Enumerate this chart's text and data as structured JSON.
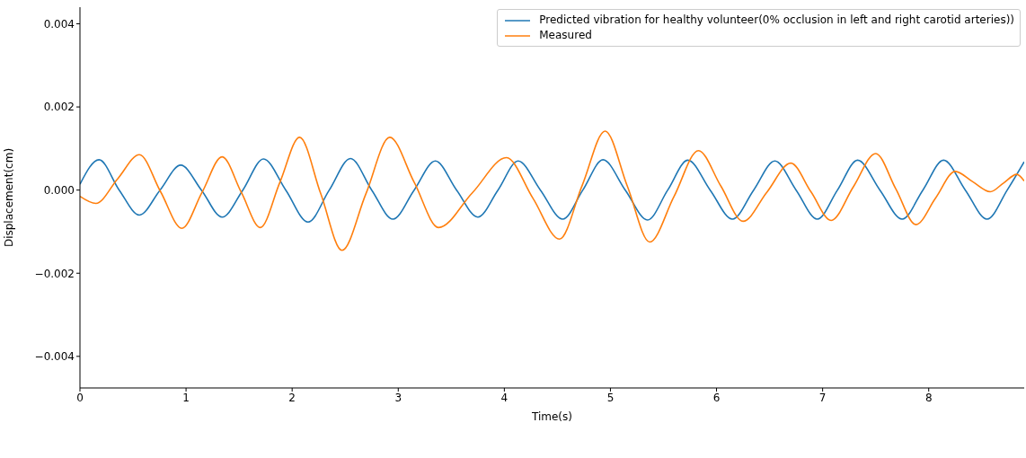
{
  "chart_data": {
    "type": "line",
    "xlabel": "Time(s)",
    "ylabel": "Displacement(cm)",
    "xlim": [
      0,
      8.9
    ],
    "xticks": [
      0,
      1,
      2,
      3,
      4,
      5,
      6,
      7,
      8
    ],
    "ylim": [
      -0.00476,
      0.0044
    ],
    "yticks": [
      {
        "value": -0.004,
        "label": "−0.004"
      },
      {
        "value": -0.002,
        "label": "−0.002"
      },
      {
        "value": 0,
        "label": "0.000"
      },
      {
        "value": 0.002,
        "label": "0.002"
      },
      {
        "value": 0.004,
        "label": "0.004"
      }
    ],
    "legend": "top right",
    "grid": false,
    "marker": "none",
    "line_style": "solid",
    "series": [
      {
        "name": "Predicted vibration for healthy volunteer(0% occlusion in left and right carotid arteries))",
        "color": "#1f77b4",
        "x": [
          0,
          0.18,
          0.37,
          0.56,
          0.755,
          0.95,
          1.145,
          1.34,
          1.535,
          1.73,
          1.94,
          2.15,
          2.35,
          2.55,
          2.75,
          2.95,
          3.15,
          3.35,
          3.55,
          3.75,
          3.94,
          4.13,
          4.34,
          4.55,
          4.74,
          4.93,
          5.14,
          5.35,
          5.54,
          5.73,
          5.94,
          6.15,
          6.35,
          6.55,
          6.75,
          6.95,
          7.14,
          7.33,
          7.54,
          7.75,
          7.945,
          8.14,
          8.345,
          8.55,
          8.74,
          8.9
        ],
        "values": [
          0.00014,
          0.00073,
          0,
          -0.0006,
          0,
          0.0006,
          0,
          -0.00065,
          0,
          0.00075,
          0,
          -0.00077,
          0,
          0.00076,
          0,
          -0.0007,
          0,
          0.0007,
          0,
          -0.00065,
          0,
          0.0007,
          0,
          -0.0007,
          0,
          0.00073,
          0,
          -0.00072,
          0,
          0.00072,
          0,
          -0.0007,
          0,
          0.0007,
          0,
          -0.0007,
          0,
          0.00072,
          0,
          -0.0007,
          0,
          0.00072,
          0,
          -0.0007,
          0,
          0.00068
        ]
      },
      {
        "name": "Measured",
        "color": "#ff7f0e",
        "x": [
          0,
          0.15,
          0.355,
          0.56,
          0.76,
          0.96,
          1.15,
          1.34,
          1.52,
          1.7,
          1.885,
          2.07,
          2.27,
          2.47,
          2.695,
          2.92,
          3.15,
          3.38,
          3.7,
          4.02,
          4.27,
          4.52,
          4.735,
          4.95,
          5.16,
          5.37,
          5.6,
          5.83,
          6.04,
          6.25,
          6.475,
          6.7,
          6.89,
          7.08,
          7.29,
          7.5,
          7.69,
          7.88,
          8.065,
          8.25,
          8.415,
          8.58,
          8.705,
          8.83,
          8.9
        ],
        "values": [
          -0.00015,
          -0.00032,
          0.00027,
          0.00085,
          -4e-05,
          -0.00092,
          -6e-05,
          0.0008,
          -5e-05,
          -0.0009,
          0.00019,
          0.00127,
          -9e-05,
          -0.00145,
          -9e-05,
          0.00127,
          0.00019,
          -0.0009,
          -6e-05,
          0.00078,
          -0.0002,
          -0.00118,
          0.00012,
          0.00142,
          9e-05,
          -0.00125,
          -0.00015,
          0.00095,
          0.0001,
          -0.00075,
          -5e-05,
          0.00065,
          -4e-05,
          -0.00073,
          8e-05,
          0.00088,
          3e-05,
          -0.00083,
          -0.00019,
          0.00045,
          0.0002,
          -4e-05,
          0.00017,
          0.00038,
          0.00022
        ]
      }
    ]
  }
}
